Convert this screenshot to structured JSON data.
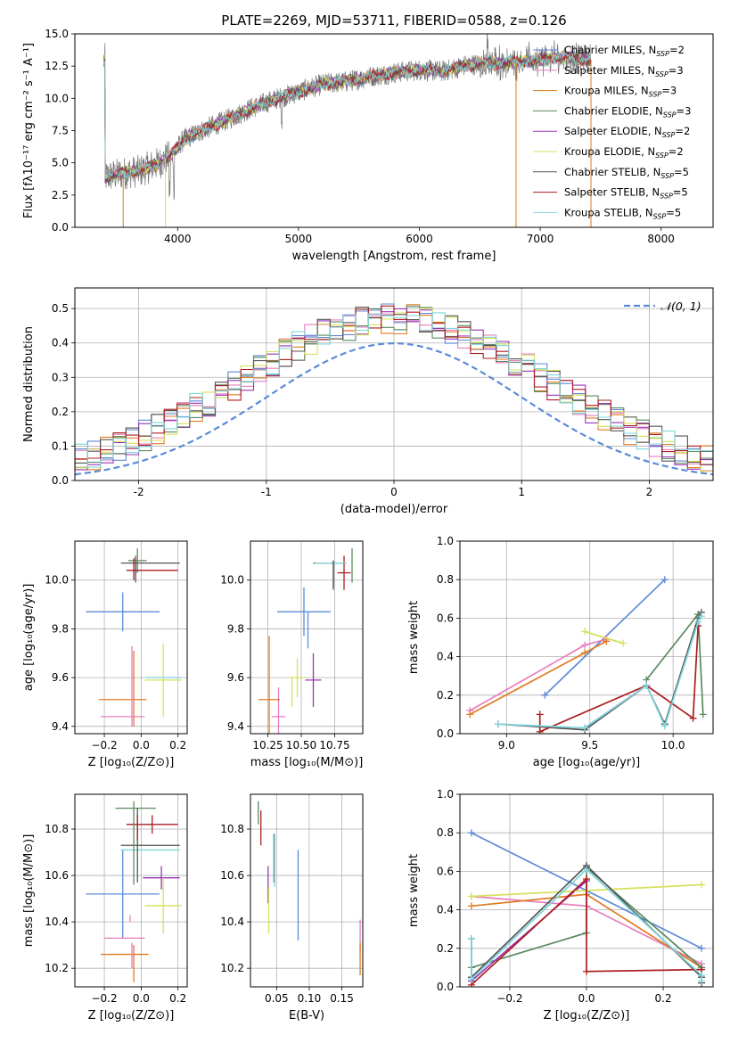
{
  "colors": {
    "chabrier_miles": "#5b8bd8",
    "salpeter_miles": "#e77fbd",
    "kroupa_miles": "#e07b22",
    "chabrier_elodie": "#5a8a61",
    "salpeter_elodie": "#9a35b5",
    "kroupa_elodie": "#d6e05c",
    "chabrier_stelib": "#555555",
    "salpeter_stelib": "#ad1e21",
    "kroupa_stelib": "#7fd6dc",
    "normal_curve": "#5b8bd8",
    "grid": "#b0b0b0"
  },
  "chart_data": [
    {
      "id": "spectrum",
      "type": "line",
      "title": "PLATE=2269, MJD=53711, FIBERID=0588, z=0.126",
      "xlabel": "wavelength [Angstrom, rest frame]",
      "ylabel": "Flux [fλ10⁻¹⁷ erg cm⁻² s⁻¹ A⁻¹]",
      "xlim": [
        3150,
        8430
      ],
      "ylim": [
        0,
        15
      ],
      "xticks": [
        "4000",
        "5000",
        "6000",
        "7000",
        "8000"
      ],
      "yticks": [
        "0.0",
        "2.5",
        "5.0",
        "7.5",
        "10.0",
        "12.5",
        "15.0"
      ],
      "grid": false,
      "legend_position": "top-right",
      "legend": [
        {
          "key": "chabrier_miles",
          "label": "Chabrier MILES, N",
          "sub": "SSP",
          "suffix": "=2"
        },
        {
          "key": "salpeter_miles",
          "label": "Salpeter MILES, N",
          "sub": "SSP",
          "suffix": "=3"
        },
        {
          "key": "kroupa_miles",
          "label": "Kroupa MILES, N",
          "sub": "SSP",
          "suffix": "=3"
        },
        {
          "key": "chabrier_elodie",
          "label": "Chabrier ELODIE, N",
          "sub": "SSP",
          "suffix": "=3"
        },
        {
          "key": "salpeter_elodie",
          "label": "Salpeter ELODIE, N",
          "sub": "SSP",
          "suffix": "=2"
        },
        {
          "key": "kroupa_elodie",
          "label": "Kroupa ELODIE, N",
          "sub": "SSP",
          "suffix": "=2"
        },
        {
          "key": "chabrier_stelib",
          "label": "Chabrier STELIB, N",
          "sub": "SSP",
          "suffix": "=5"
        },
        {
          "key": "salpeter_stelib",
          "label": "Salpeter STELIB, N",
          "sub": "SSP",
          "suffix": "=5"
        },
        {
          "key": "kroupa_stelib",
          "label": "Kroupa STELIB, N",
          "sub": "SSP",
          "suffix": "=5"
        }
      ],
      "continuum": [
        [
          3400,
          3.9
        ],
        [
          3550,
          4.2
        ],
        [
          3700,
          4.4
        ],
        [
          3850,
          5.0
        ],
        [
          3950,
          5.6
        ],
        [
          4050,
          6.8
        ],
        [
          4200,
          7.5
        ],
        [
          4400,
          8.3
        ],
        [
          4600,
          9.2
        ],
        [
          4800,
          9.9
        ],
        [
          5000,
          10.5
        ],
        [
          5200,
          11.1
        ],
        [
          5400,
          11.3
        ],
        [
          5600,
          11.7
        ],
        [
          5800,
          12.0
        ],
        [
          6000,
          12.2
        ],
        [
          6200,
          12.1
        ],
        [
          6400,
          12.6
        ],
        [
          6600,
          12.7
        ],
        [
          6800,
          12.8
        ],
        [
          7000,
          13.0
        ],
        [
          7200,
          13.2
        ],
        [
          7400,
          13.0
        ]
      ],
      "observed_range": [
        3390,
        7420
      ],
      "model_range": [
        3390,
        7420
      ]
    },
    {
      "id": "residuals",
      "type": "histogram",
      "xlabel": "(data-model)/error",
      "ylabel": "Normed distribution",
      "xlim": [
        -2.5,
        2.5
      ],
      "ylim": [
        0,
        0.56
      ],
      "xticks": [
        -2,
        -1,
        0,
        1,
        2
      ],
      "yticks": [
        "0.0",
        "0.1",
        "0.2",
        "0.3",
        "0.4",
        "0.5"
      ],
      "grid": true,
      "legend_position": "top-right",
      "legend_label": "𝒩(0, 1)",
      "bin_width": 0.1,
      "normal": {
        "mean": 0,
        "sigma": 1
      }
    },
    {
      "id": "age_vs_Z",
      "type": "scatter",
      "xlabel": "Z [log₁₀(Z/Z⊙)]",
      "ylabel": "age  [log₁₀(age/yr)]",
      "xlim": [
        -0.36,
        0.25
      ],
      "ylim": [
        9.37,
        10.16
      ],
      "xticks": [
        "−0.2",
        "0.0",
        "0.2"
      ],
      "yticks": [
        "9.4",
        "9.6",
        "9.8",
        "10.0"
      ],
      "grid": true,
      "points": [
        {
          "key": "chabrier_miles",
          "x": -0.1,
          "xerr": 0.2,
          "y": 9.87,
          "yerr": 0.08
        },
        {
          "key": "salpeter_miles",
          "x": -0.1,
          "xerr": 0.12,
          "y": 9.44,
          "yerr": 0.0
        },
        {
          "key": "kroupa_miles",
          "x": -0.1,
          "xerr": 0.13,
          "y": 9.51,
          "yerr": 0.0
        },
        {
          "key": "chabrier_elodie",
          "x": -0.02,
          "xerr": 0.05,
          "y": 10.08,
          "yerr": 0.05
        },
        {
          "key": "salpeter_elodie",
          "x": -0.03,
          "xerr": 0.0,
          "y": 10.05,
          "yerr": 0.03
        },
        {
          "key": "kroupa_elodie",
          "x": 0.12,
          "xerr": 0.1,
          "y": 9.59,
          "yerr": 0.15
        },
        {
          "key": "chabrier_stelib",
          "x": 0.05,
          "xerr": 0.16,
          "y": 10.07,
          "yerr": 0.0
        },
        {
          "key": "salpeter_stelib",
          "x": 0.06,
          "xerr": 0.14,
          "y": 10.04,
          "yerr": 0.0
        },
        {
          "key": "kroupa_stelib",
          "x": 0.12,
          "xerr": 0.1,
          "y": 9.6,
          "yerr": 0.0
        }
      ],
      "vlines": [
        {
          "key": "kroupa_miles",
          "x": -0.04,
          "y0": 9.4,
          "y1": 9.71
        },
        {
          "key": "salpeter_miles",
          "x": -0.05,
          "y0": 9.4,
          "y1": 9.73
        },
        {
          "key": "salpeter_stelib",
          "x": -0.04,
          "y0": 10.0,
          "y1": 10.09
        },
        {
          "key": "chabrier_stelib",
          "x": -0.03,
          "y0": 9.99,
          "y1": 10.1
        }
      ]
    },
    {
      "id": "age_vs_mass",
      "type": "scatter",
      "xlabel": "mass [log₁₀(M/M⊙)]",
      "ylabel": "",
      "xlim": [
        10.12,
        10.96
      ],
      "ylim": [
        9.37,
        10.16
      ],
      "xticks": [
        "10.25",
        "10.50",
        "10.75"
      ],
      "yticks": [
        "9.4",
        "9.6",
        "9.8",
        "10.0"
      ],
      "grid": true,
      "points": [
        {
          "key": "chabrier_miles",
          "x": 10.52,
          "xerr": 0.2,
          "y": 9.87,
          "yerr": 0.1
        },
        {
          "key": "salpeter_miles",
          "x": 10.33,
          "xerr": 0.05,
          "y": 9.44,
          "yerr": 0.12
        },
        {
          "key": "kroupa_miles",
          "x": 10.26,
          "xerr": 0.08,
          "y": 9.51,
          "yerr": 0.26
        },
        {
          "key": "chabrier_elodie",
          "x": 10.88,
          "xerr": 0.0,
          "y": 10.06,
          "yerr": 0.07
        },
        {
          "key": "salpeter_elodie",
          "x": 10.59,
          "xerr": 0.06,
          "y": 9.59,
          "yerr": 0.11
        },
        {
          "key": "kroupa_elodie",
          "x": 10.47,
          "xerr": 0.06,
          "y": 9.6,
          "yerr": 0.08
        },
        {
          "key": "chabrier_stelib",
          "x": 10.71,
          "xerr": 0.12,
          "y": 10.07,
          "yerr": 0.0
        },
        {
          "key": "salpeter_stelib",
          "x": 10.82,
          "xerr": 0.05,
          "y": 10.03,
          "yerr": 0.07
        },
        {
          "key": "kroupa_stelib",
          "x": 10.72,
          "xerr": 0.12,
          "y": 10.07,
          "yerr": 0.0
        }
      ],
      "vlines": [
        {
          "key": "chabrier_miles",
          "x": 10.55,
          "y0": 9.72,
          "y1": 9.87
        },
        {
          "key": "kroupa_elodie",
          "x": 10.43,
          "y0": 9.48,
          "y1": 9.6
        },
        {
          "key": "chabrier_stelib",
          "x": 10.74,
          "y0": 9.97,
          "y1": 10.08
        },
        {
          "key": "chabrier_stelib",
          "x": 10.74,
          "y0": 9.96,
          "y1": 10.08
        }
      ]
    },
    {
      "id": "weight_vs_age",
      "type": "line",
      "xlabel": "age  [log₁₀(age/yr)]",
      "ylabel": "mass weight",
      "xlim": [
        8.72,
        10.24
      ],
      "ylim": [
        0,
        1
      ],
      "xticks": [
        "9.0",
        "9.5",
        "10.0"
      ],
      "yticks": [
        "0.0",
        "0.2",
        "0.4",
        "0.6",
        "0.8",
        "1.0"
      ],
      "grid": true,
      "series": [
        {
          "key": "chabrier_miles",
          "x": [
            9.23,
            9.95
          ],
          "y": [
            0.2,
            0.8
          ]
        },
        {
          "key": "salpeter_miles",
          "x": [
            8.78,
            9.47,
            9.6
          ],
          "y": [
            0.12,
            0.46,
            0.49
          ]
        },
        {
          "key": "kroupa_miles",
          "x": [
            8.78,
            9.47,
            9.6
          ],
          "y": [
            0.1,
            0.42,
            0.48
          ]
        },
        {
          "key": "chabrier_elodie",
          "x": [
            9.84,
            10.15,
            10.18
          ],
          "y": [
            0.28,
            0.62,
            0.1
          ]
        },
        {
          "key": "salpeter_elodie",
          "x": [
            9.47,
            9.84
          ],
          "y": [
            0.03,
            0.25
          ]
        },
        {
          "key": "kroupa_elodie",
          "x": [
            9.47,
            9.7
          ],
          "y": [
            0.53,
            0.47
          ]
        },
        {
          "key": "chabrier_stelib",
          "x": [
            8.95,
            9.47,
            9.84,
            9.95,
            10.15,
            10.17
          ],
          "y": [
            0.05,
            0.02,
            0.25,
            0.05,
            0.6,
            0.63
          ]
        },
        {
          "key": "salpeter_stelib",
          "x": [
            9.2,
            9.2,
            9.84,
            10.12,
            10.15
          ],
          "y": [
            0.1,
            0.01,
            0.25,
            0.08,
            0.56
          ]
        },
        {
          "key": "kroupa_stelib",
          "x": [
            8.95,
            9.47,
            9.84,
            9.95,
            10.15,
            10.17
          ],
          "y": [
            0.05,
            0.03,
            0.25,
            0.04,
            0.58,
            0.61
          ]
        }
      ]
    },
    {
      "id": "mass_vs_Z",
      "type": "scatter",
      "xlabel": "Z [log₁₀(Z/Z⊙)]",
      "ylabel": "mass [log₁₀(M/M⊙)]",
      "xlim": [
        -0.36,
        0.25
      ],
      "ylim": [
        10.12,
        10.95
      ],
      "xticks": [
        "−0.2",
        "0.0",
        "0.2"
      ],
      "yticks": [
        "10.2",
        "10.4",
        "10.6",
        "10.8"
      ],
      "grid": true,
      "points": [
        {
          "key": "chabrier_miles",
          "x": -0.1,
          "xerr": 0.2,
          "y": 10.52,
          "yerr": 0.19
        },
        {
          "key": "salpeter_miles",
          "x": -0.09,
          "xerr": 0.11,
          "y": 10.33,
          "yerr": 0.0
        },
        {
          "key": "kroupa_miles",
          "x": -0.09,
          "xerr": 0.13,
          "y": 10.26,
          "yerr": 0.0
        },
        {
          "key": "chabrier_elodie",
          "x": -0.03,
          "xerr": 0.11,
          "y": 10.89,
          "yerr": 0.0
        },
        {
          "key": "salpeter_elodie",
          "x": 0.11,
          "xerr": 0.1,
          "y": 10.59,
          "yerr": 0.05
        },
        {
          "key": "kroupa_elodie",
          "x": 0.12,
          "xerr": 0.1,
          "y": 10.47,
          "yerr": 0.12
        },
        {
          "key": "chabrier_stelib",
          "x": 0.05,
          "xerr": 0.16,
          "y": 10.73,
          "yerr": 0.0
        },
        {
          "key": "salpeter_stelib",
          "x": 0.06,
          "xerr": 0.14,
          "y": 10.82,
          "yerr": 0.04
        },
        {
          "key": "kroupa_stelib",
          "x": 0.05,
          "xerr": 0.16,
          "y": 10.71,
          "yerr": 0.0
        }
      ],
      "vlines": [
        {
          "key": "kroupa_miles",
          "x": -0.04,
          "y0": 10.14,
          "y1": 10.3
        },
        {
          "key": "salpeter_miles",
          "x": -0.05,
          "y0": 10.2,
          "y1": 10.31
        },
        {
          "key": "chabrier_stelib",
          "x": -0.02,
          "y0": 10.57,
          "y1": 10.89
        },
        {
          "key": "salpeter_stelib",
          "x": -0.02,
          "y0": 10.75,
          "y1": 10.86
        },
        {
          "key": "chabrier_elodie",
          "x": -0.04,
          "y0": 10.56,
          "y1": 10.92
        },
        {
          "key": "salpeter_miles",
          "x": -0.06,
          "y0": 10.4,
          "y1": 10.43
        }
      ]
    },
    {
      "id": "mass_vs_ebv",
      "type": "scatter",
      "xlabel": "E(B-V)",
      "ylabel": "",
      "xlim": [
        0.01,
        0.182
      ],
      "ylim": [
        10.12,
        10.95
      ],
      "xticks": [
        "0.05",
        "0.10",
        "0.15"
      ],
      "yticks": [
        "10.2",
        "10.4",
        "10.6",
        "10.8"
      ],
      "grid": true,
      "vlines": [
        {
          "key": "chabrier_elodie",
          "x": 0.022,
          "y0": 10.82,
          "y1": 10.92
        },
        {
          "key": "salpeter_stelib",
          "x": 0.026,
          "y0": 10.73,
          "y1": 10.88
        },
        {
          "key": "salpeter_elodie",
          "x": 0.037,
          "y0": 10.48,
          "y1": 10.64
        },
        {
          "key": "kroupa_elodie",
          "x": 0.038,
          "y0": 10.35,
          "y1": 10.55
        },
        {
          "key": "chabrier_stelib",
          "x": 0.046,
          "y0": 10.57,
          "y1": 10.78
        },
        {
          "key": "kroupa_stelib",
          "x": 0.047,
          "y0": 10.55,
          "y1": 10.78
        },
        {
          "key": "chabrier_miles",
          "x": 0.083,
          "y0": 10.32,
          "y1": 10.71
        },
        {
          "key": "salpeter_miles",
          "x": 0.178,
          "y0": 10.27,
          "y1": 10.41
        },
        {
          "key": "kroupa_miles",
          "x": 0.178,
          "y0": 10.17,
          "y1": 10.31
        }
      ]
    },
    {
      "id": "weight_vs_Z",
      "type": "line",
      "xlabel": "Z [log₁₀(Z/Z⊙)]",
      "ylabel": "mass weight",
      "xlim": [
        -0.33,
        0.33
      ],
      "ylim": [
        0,
        1
      ],
      "xticks": [
        "−0.2",
        "0.0",
        "0.2"
      ],
      "yticks": [
        "0.0",
        "0.2",
        "0.4",
        "0.6",
        "0.8",
        "1.0"
      ],
      "grid": true,
      "series": [
        {
          "key": "chabrier_miles",
          "x": [
            -0.3,
            0.3
          ],
          "y": [
            0.8,
            0.2
          ]
        },
        {
          "key": "salpeter_miles",
          "x": [
            -0.3,
            0.0,
            0.3
          ],
          "y": [
            0.47,
            0.42,
            0.12
          ]
        },
        {
          "key": "kroupa_miles",
          "x": [
            -0.3,
            0.0,
            0.3
          ],
          "y": [
            0.42,
            0.48,
            0.1
          ]
        },
        {
          "key": "chabrier_elodie",
          "x": [
            -0.3,
            0.0,
            0.0,
            0.3,
            0.3
          ],
          "y": [
            0.1,
            0.28,
            0.62,
            0.1,
            0.05
          ]
        },
        {
          "key": "salpeter_elodie",
          "x": [
            -0.3,
            0.0
          ],
          "y": [
            0.03,
            0.55
          ]
        },
        {
          "key": "kroupa_elodie",
          "x": [
            -0.3,
            0.3
          ],
          "y": [
            0.47,
            0.53
          ]
        },
        {
          "key": "chabrier_stelib",
          "x": [
            -0.3,
            -0.3,
            0.0,
            0.3,
            0.3
          ],
          "y": [
            0.25,
            0.05,
            0.63,
            0.05,
            0.02
          ]
        },
        {
          "key": "salpeter_stelib",
          "x": [
            -0.3,
            0.0,
            0.0,
            0.3
          ],
          "y": [
            0.01,
            0.56,
            0.08,
            0.09
          ]
        },
        {
          "key": "kroupa_stelib",
          "x": [
            -0.3,
            -0.3,
            0.0,
            0.3,
            0.3
          ],
          "y": [
            0.25,
            0.04,
            0.61,
            0.06,
            0.03
          ]
        }
      ]
    }
  ]
}
